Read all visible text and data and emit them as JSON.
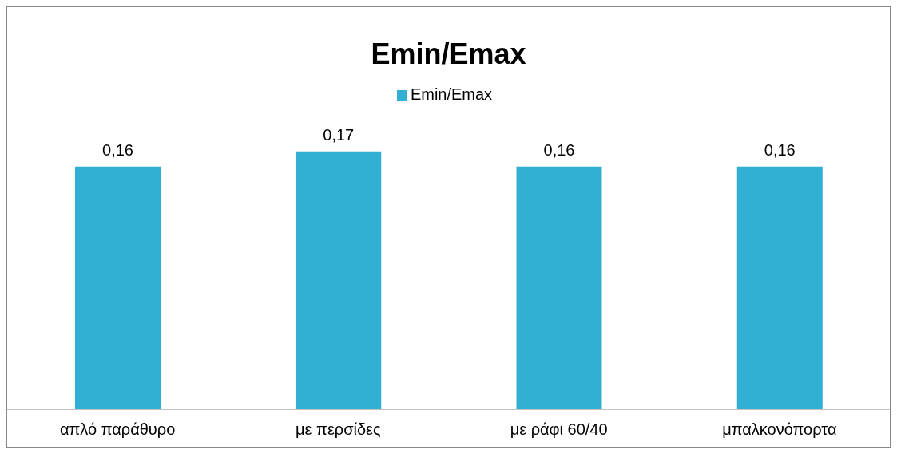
{
  "chart_data": {
    "type": "bar",
    "title": "Emin/Emax",
    "categories": [
      "απλό παράθυρο",
      "με περσίδες",
      "με ράφι 60/40",
      "μπαλκονόπορτα"
    ],
    "series": [
      {
        "name": "Emin/Emax",
        "color": "#31b0d4",
        "values": [
          0.16,
          0.17,
          0.16,
          0.16
        ],
        "value_labels": [
          "0,16",
          "0,17",
          "0,16",
          "0,16"
        ]
      }
    ],
    "legend": "top",
    "grid": false
  }
}
